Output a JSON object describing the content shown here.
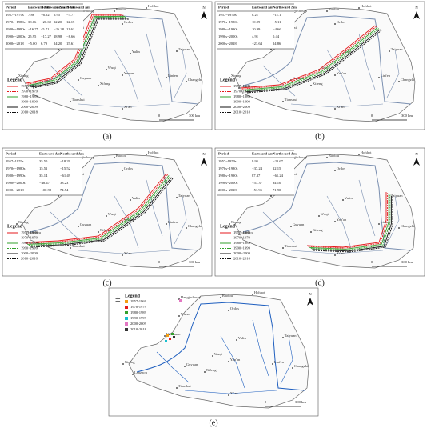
{
  "north": "N",
  "scale": {
    "zero": "0",
    "length": "300 km"
  },
  "places": [
    "Hangjinhouqi",
    "Baotou",
    "Hohhot",
    "Ordos",
    "Wuhai",
    "Yinchuan",
    "Yulin",
    "Wuqi",
    "Yan'an",
    "Taiyuan",
    "Lanzhou",
    "Xining",
    "Guyuan",
    "Xifeng",
    "Tianshui",
    "Linfen",
    "Changzhi",
    "Xi'an"
  ],
  "line_legend": {
    "title": "Legend",
    "items": [
      "1957~1969",
      "1970~1979",
      "1980~1989",
      "1990~1999",
      "2000~2009",
      "2010~2018"
    ],
    "colors": [
      "#e41a1c",
      "#e41a1c",
      "#33a02c",
      "#33a02c",
      "#111111",
      "#111111"
    ],
    "dashed": [
      false,
      true,
      false,
      true,
      false,
      true
    ]
  },
  "panels": [
    {
      "label": "(a)",
      "table": {
        "header": [
          "Period",
          "Eastward Δm",
          "Northward Δm",
          "Eastward Δm",
          "Northward Δm"
        ],
        "rows": [
          [
            "1957~1970s",
            "7.86",
            "−6.62",
            "6.95",
            "−3.77"
          ],
          [
            "1970s~1980s",
            "38.06",
            "−20.69",
            "32.20",
            "12.15"
          ],
          [
            "1980s~1990s",
            "−16.75",
            "45.71",
            "−26.28",
            "11.61"
          ],
          [
            "1990s~2000s",
            "25.95",
            "−17.27",
            "18.98",
            "−8.66"
          ],
          [
            "2000s~2018",
            "−5.00",
            "6.79",
            "24.20",
            "15.61"
          ]
        ]
      }
    },
    {
      "label": "(b)",
      "table": {
        "header": [
          "Period",
          "Eastward Δm",
          "Northward Δm"
        ],
        "rows": [
          [
            "1957~1970s",
            "8.21",
            "−11.1"
          ],
          [
            "1970s~1980s",
            "10.99",
            "−5.11"
          ],
          [
            "1980s~1990s",
            "10.99",
            "−4.66"
          ],
          [
            "1990s~2000s",
            "4.91",
            "0.44"
          ],
          [
            "2000s~2018",
            "−23.64",
            "24.86"
          ]
        ]
      }
    },
    {
      "label": "(c)",
      "table": {
        "header": [
          "Period",
          "Eastward Δm",
          "Northward Δm"
        ],
        "rows": [
          [
            "1957~1970s",
            "35.50",
            "−18.29"
          ],
          [
            "1970s~1980s",
            "15.51",
            "−15.52"
          ],
          [
            "1980s~1990s",
            "35.14",
            "−61.49"
          ],
          [
            "1990s~2000s",
            "−48.47",
            "33.23"
          ],
          [
            "2000s~2018",
            "−100.98",
            "74.54"
          ]
        ]
      }
    },
    {
      "label": "(d)",
      "table": {
        "header": [
          "Period",
          "Eastward Δm",
          "Northward Δm"
        ],
        "rows": [
          [
            "1957~1970s",
            "9.95",
            "−20.67"
          ],
          [
            "1970s~1980s",
            "−37.24",
            "12.15"
          ],
          [
            "1980s~1990s",
            "87.37",
            "−61.24"
          ],
          [
            "1990s~2000s",
            "−53.37",
            "34.10"
          ],
          [
            "2000s~2018",
            "−51.95",
            "71.90"
          ]
        ]
      }
    },
    {
      "label": "(e)",
      "symbol": "±",
      "legend": {
        "title": "Legend",
        "items": [
          "1957-1969",
          "1970-1979",
          "1980-1989",
          "1990-1999",
          "2000-2009",
          "2010-2018"
        ],
        "colors": [
          "#f39c12",
          "#e41a1c",
          "#33a02c",
          "#17becf",
          "#e377c2",
          "#333333"
        ]
      }
    }
  ]
}
